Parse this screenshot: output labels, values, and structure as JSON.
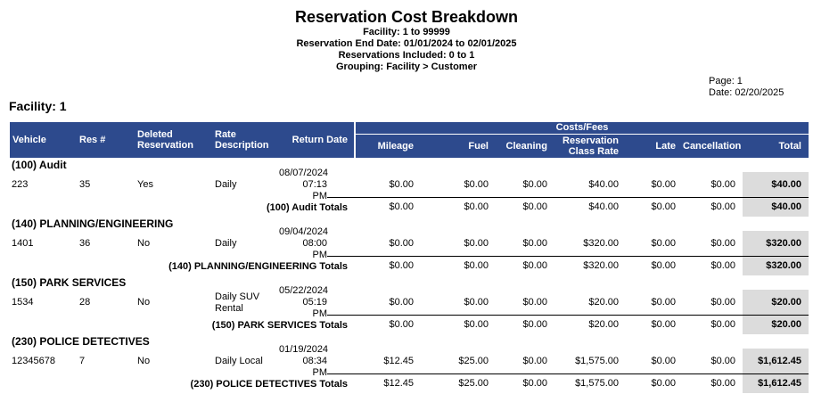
{
  "report": {
    "title": "Reservation Cost Breakdown",
    "subtitle_lines": [
      "Facility: 1 to 99999",
      "Reservation End Date: 01/01/2024 to 02/01/2025",
      "Reservations Included: 0 to 1",
      "Grouping: Facility > Customer"
    ],
    "page_label": "Page: 1",
    "date_label": "Date: 02/20/2025",
    "facility_heading": "Facility: 1"
  },
  "table": {
    "costs_fees_label": "Costs/Fees",
    "columns_left": [
      "Vehicle",
      "Res #",
      "Deleted Reservation",
      "Rate Description",
      "Return Date"
    ],
    "columns_costs": [
      "Mileage",
      "Fuel",
      "Cleaning",
      "Reservation Class Rate",
      "Late",
      "Cancellation",
      "Total"
    ],
    "colors": {
      "header_bg": "#2D4A8D",
      "total_col_bg": "#DCDCDC"
    },
    "groups": [
      {
        "name": "(100) Audit",
        "row": {
          "vehicle": "223",
          "res": "35",
          "deleted": "Yes",
          "rate": "Daily",
          "return_date_line1": "08/07/2024 07:13",
          "return_date_line2": "PM",
          "mileage": "$0.00",
          "fuel": "$0.00",
          "cleaning": "$0.00",
          "class_rate": "$40.00",
          "late": "$0.00",
          "cancellation": "$0.00",
          "total": "$40.00"
        },
        "totals_label": "(100) Audit Totals",
        "totals": {
          "mileage": "$0.00",
          "fuel": "$0.00",
          "cleaning": "$0.00",
          "class_rate": "$40.00",
          "late": "$0.00",
          "cancellation": "$0.00",
          "total": "$40.00"
        }
      },
      {
        "name": "(140) PLANNING/ENGINEERING",
        "row": {
          "vehicle": "1401",
          "res": "36",
          "deleted": "No",
          "rate": "Daily",
          "return_date_line1": "09/04/2024 08:00",
          "return_date_line2": "PM",
          "mileage": "$0.00",
          "fuel": "$0.00",
          "cleaning": "$0.00",
          "class_rate": "$320.00",
          "late": "$0.00",
          "cancellation": "$0.00",
          "total": "$320.00"
        },
        "totals_label": "(140) PLANNING/ENGINEERING Totals",
        "totals": {
          "mileage": "$0.00",
          "fuel": "$0.00",
          "cleaning": "$0.00",
          "class_rate": "$320.00",
          "late": "$0.00",
          "cancellation": "$0.00",
          "total": "$320.00"
        }
      },
      {
        "name": "(150) PARK SERVICES",
        "row": {
          "vehicle": "1534",
          "res": "28",
          "deleted": "No",
          "rate": "Daily SUV Rental",
          "return_date_line1": "05/22/2024 05:19",
          "return_date_line2": "PM",
          "mileage": "$0.00",
          "fuel": "$0.00",
          "cleaning": "$0.00",
          "class_rate": "$20.00",
          "late": "$0.00",
          "cancellation": "$0.00",
          "total": "$20.00"
        },
        "totals_label": "(150) PARK SERVICES Totals",
        "totals": {
          "mileage": "$0.00",
          "fuel": "$0.00",
          "cleaning": "$0.00",
          "class_rate": "$20.00",
          "late": "$0.00",
          "cancellation": "$0.00",
          "total": "$20.00"
        }
      },
      {
        "name": "(230) POLICE DETECTIVES",
        "row": {
          "vehicle": "12345678",
          "res": "7",
          "deleted": "No",
          "rate": "Daily Local",
          "return_date_line1": "01/19/2024 08:34",
          "return_date_line2": "PM",
          "mileage": "$12.45",
          "fuel": "$25.00",
          "cleaning": "$0.00",
          "class_rate": "$1,575.00",
          "late": "$0.00",
          "cancellation": "$0.00",
          "total": "$1,612.45"
        },
        "totals_label": "(230) POLICE DETECTIVES Totals",
        "totals": {
          "mileage": "$12.45",
          "fuel": "$25.00",
          "cleaning": "$0.00",
          "class_rate": "$1,575.00",
          "late": "$0.00",
          "cancellation": "$0.00",
          "total": "$1,612.45"
        }
      }
    ]
  }
}
